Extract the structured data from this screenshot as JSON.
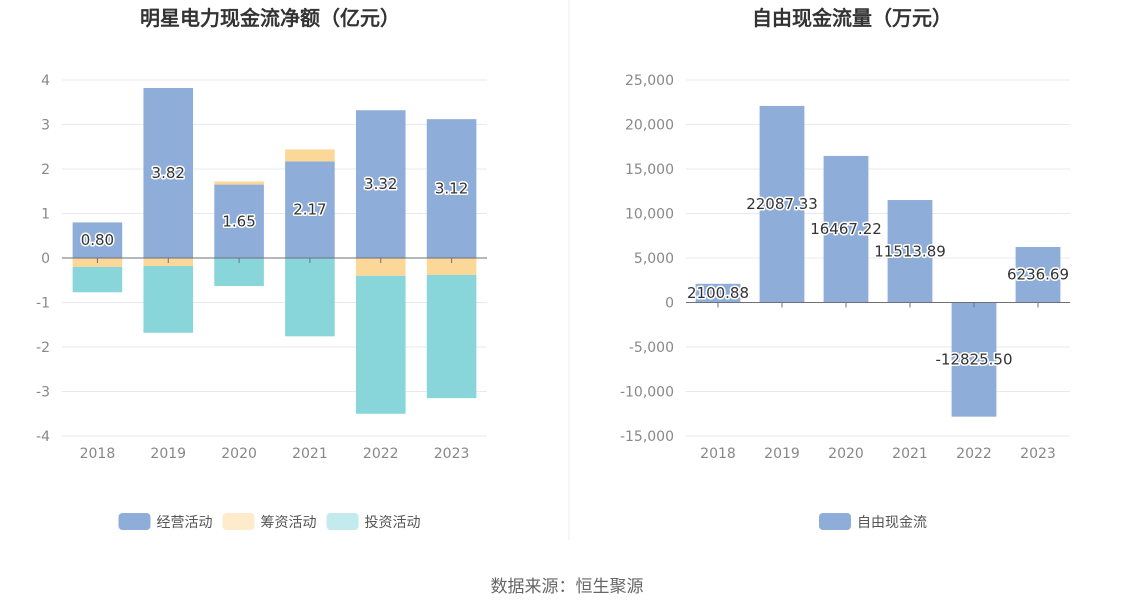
{
  "source": "数据来源：恒生聚源",
  "chart_data": [
    {
      "type": "bar",
      "stacked": true,
      "title": "明星电力现金流净额（亿元）",
      "categories": [
        "2018",
        "2019",
        "2020",
        "2021",
        "2022",
        "2023"
      ],
      "ylim": [
        -4,
        4
      ],
      "yticks": [
        "4",
        "3",
        "2",
        "1",
        "0",
        "-1",
        "-2",
        "-3",
        "-4"
      ],
      "grid": true,
      "legend_position": "bottom",
      "series": [
        {
          "name": "经营活动",
          "color": "#8fadd9",
          "values": [
            0.8,
            3.82,
            1.65,
            2.17,
            3.32,
            3.12
          ],
          "labels": [
            "0.80",
            "3.82",
            "1.65",
            "2.17",
            "3.32",
            "3.12"
          ]
        },
        {
          "name": "筹资活动",
          "color": "#fcd898",
          "values": [
            -0.2,
            -0.18,
            0.07,
            0.27,
            -0.4,
            -0.38
          ]
        },
        {
          "name": "投资活动",
          "color": "#88d6da",
          "values": [
            -0.57,
            -1.5,
            -0.63,
            -1.76,
            -3.1,
            -2.77
          ]
        }
      ]
    },
    {
      "type": "bar",
      "title": "自由现金流量（万元）",
      "categories": [
        "2018",
        "2019",
        "2020",
        "2021",
        "2022",
        "2023"
      ],
      "ylim": [
        -15000,
        25000
      ],
      "yticks": [
        "25,000",
        "20,000",
        "15,000",
        "10,000",
        "5,000",
        "0",
        "-5,000",
        "-10,000",
        "-15,000"
      ],
      "grid": true,
      "legend_position": "bottom",
      "series": [
        {
          "name": "自由现金流",
          "color": "#8fadd9",
          "values": [
            2100.88,
            22087.33,
            16467.22,
            11513.89,
            -12825.5,
            6236.69
          ],
          "labels": [
            "2100.88",
            "22087.33",
            "16467.22",
            "11513.89",
            "-12825.50",
            "6236.69"
          ]
        }
      ]
    }
  ]
}
